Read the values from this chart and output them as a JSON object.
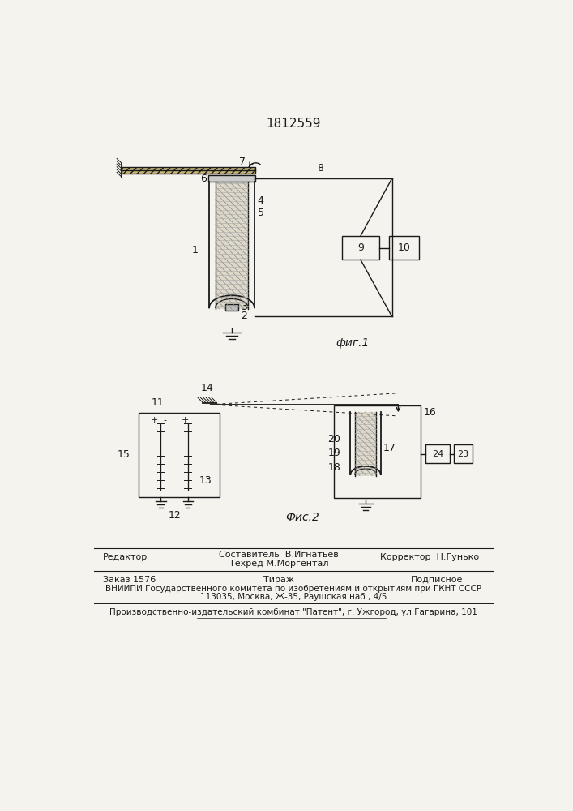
{
  "title": "1812559",
  "fig1_label": "фиг.1",
  "fig2_label": "Фис.2",
  "bg": "#f5f3ee",
  "lc": "#1a1a1a"
}
